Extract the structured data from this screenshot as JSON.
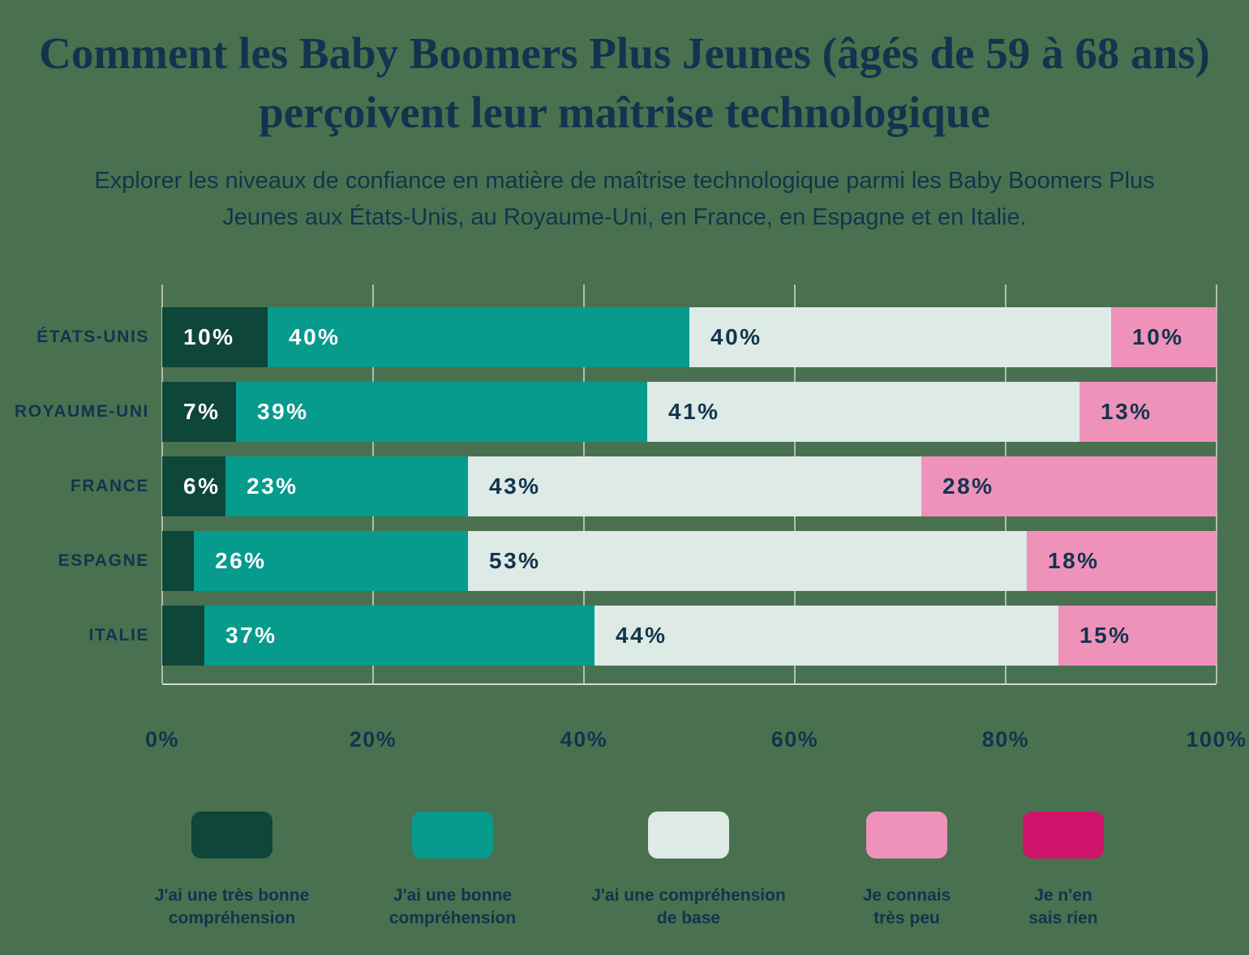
{
  "title": "Comment les Baby Boomers Plus Jeunes (âgés de 59 à 68 ans) perçoivent leur maîtrise technologique",
  "subtitle": "Explorer les niveaux de confiance en matière de maîtrise technologique parmi les Baby Boomers Plus Jeunes aux États-Unis, au Royaume-Uni, en France, en Espagne et en Italie.",
  "colors": {
    "background": "#4A714F",
    "text_dark": "#12344E",
    "text_light": "#FFFFFF",
    "gridline": "rgba(255,255,255,0.55)"
  },
  "chart_data": {
    "type": "bar",
    "variant": "horizontal-stacked",
    "title": "Comment les Baby Boomers Plus Jeunes (âgés de 59 à 68 ans) perçoivent leur maîtrise technologique",
    "categories": [
      "ÉTATS-UNIS",
      "ROYAUME-UNI",
      "FRANCE",
      "ESPAGNE",
      "ITALIE"
    ],
    "series": [
      {
        "name": "J'ai une très bonne compréhension",
        "color": "#0E4639",
        "label_color": "#FFFFFF",
        "values": [
          10,
          7,
          6,
          3,
          4
        ],
        "labels": [
          "10%",
          "7%",
          "6%",
          "",
          ""
        ]
      },
      {
        "name": "J'ai une bonne compréhension",
        "color": "#069B8D",
        "label_color": "#FFFFFF",
        "values": [
          40,
          39,
          23,
          26,
          37
        ],
        "labels": [
          "40%",
          "39%",
          "23%",
          "26%",
          "37%"
        ]
      },
      {
        "name": "J'ai une compréhension de base",
        "color": "#DEEAE5",
        "label_color": "#12344E",
        "values": [
          40,
          41,
          43,
          53,
          44
        ],
        "labels": [
          "40%",
          "41%",
          "43%",
          "53%",
          "44%"
        ]
      },
      {
        "name": "Je connais très peu",
        "color": "#EF92BA",
        "label_color": "#12344E",
        "values": [
          10,
          13,
          28,
          18,
          15
        ],
        "labels": [
          "10%",
          "13%",
          "28%",
          "18%",
          "15%"
        ]
      },
      {
        "name": "Je n'en sais rien",
        "color": "#CE146B",
        "label_color": "#FFFFFF",
        "values": [
          0,
          0,
          0,
          0,
          0
        ],
        "labels": [
          "",
          "",
          "",
          "",
          ""
        ]
      }
    ],
    "x_ticks": [
      "0%",
      "20%",
      "40%",
      "60%",
      "80%",
      "100%"
    ],
    "xlim": [
      0,
      100
    ],
    "grid": true,
    "legend_position": "bottom"
  }
}
